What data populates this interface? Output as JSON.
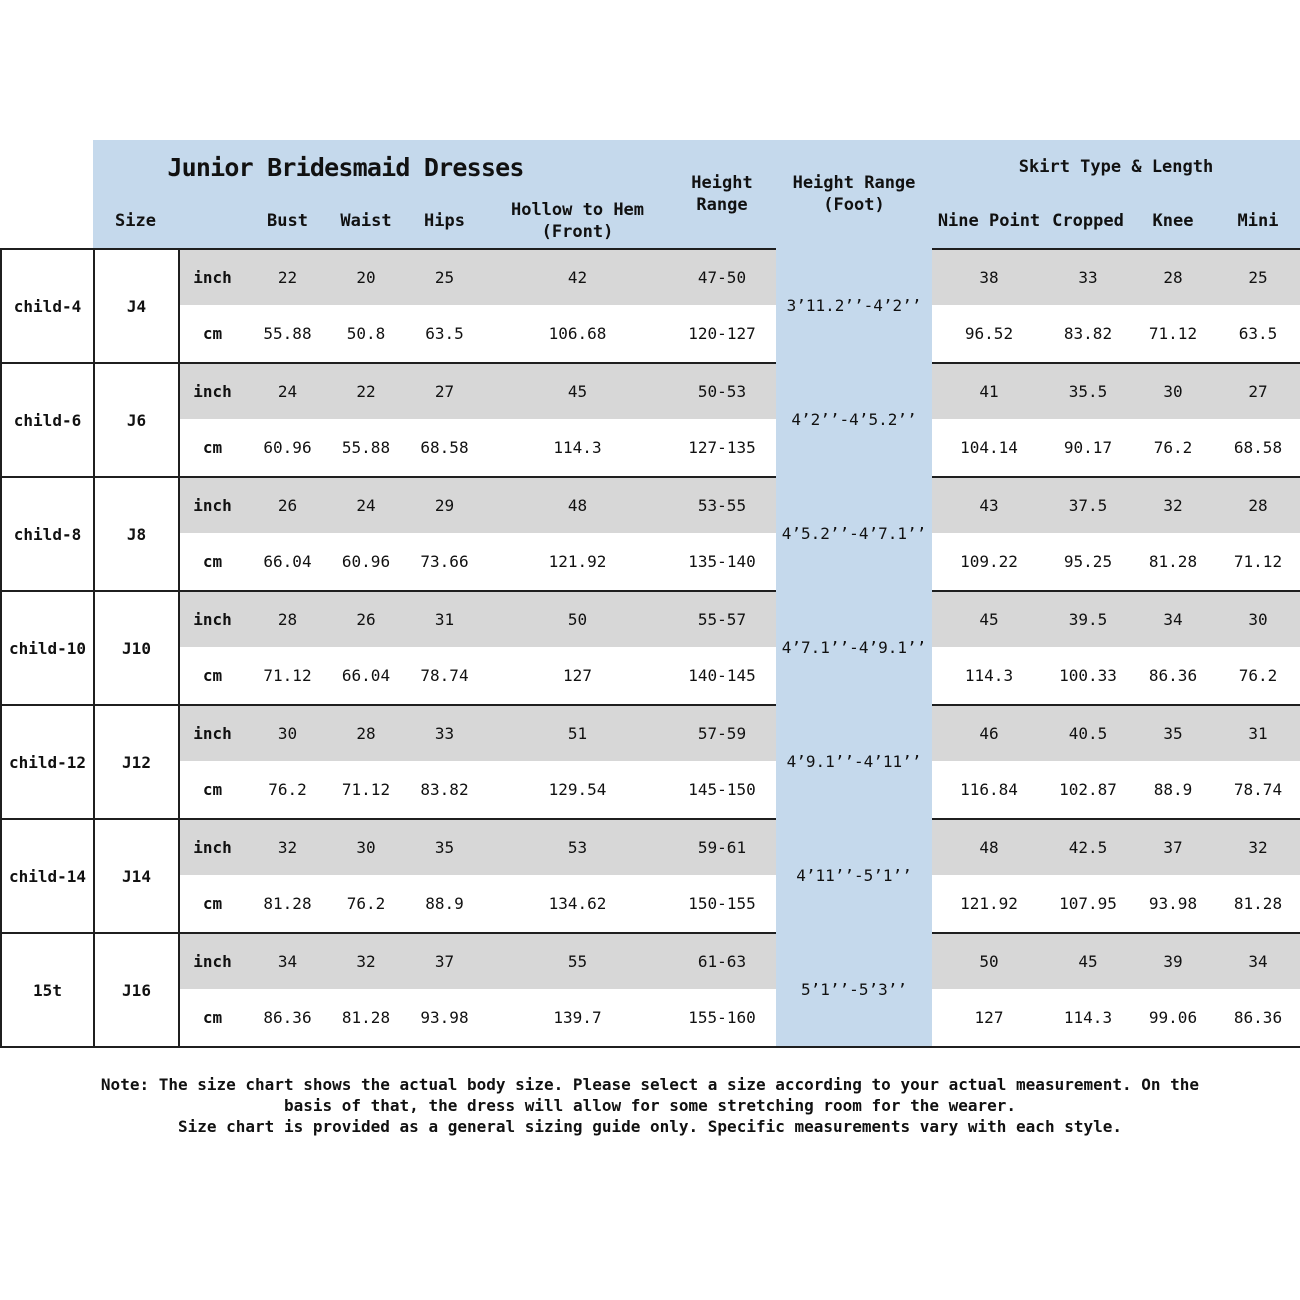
{
  "chart_data": {
    "type": "table",
    "title": "Junior Bridesmaid Dresses",
    "headers": {
      "size": "Size",
      "bust": "Bust",
      "waist": "Waist",
      "hips": "Hips",
      "hollow1": "Hollow to Hem",
      "hollow2": "(Front)",
      "height1": "Height",
      "height2": "Range",
      "foot1": "Height Range",
      "foot2": "(Foot)",
      "skirt": "Skirt Type & Length",
      "nine": "Nine Point",
      "cropped": "Cropped",
      "knee": "Knee",
      "mini": "Mini",
      "inch": "inch",
      "cm": "cm"
    },
    "rows": [
      {
        "label": "child-4",
        "size": "J4",
        "foot": "3’11.2’’-4’2’’",
        "inch": {
          "bust": "22",
          "waist": "20",
          "hips": "25",
          "hollow": "42",
          "height": "47-50",
          "nine": "38",
          "cropped": "33",
          "knee": "28",
          "mini": "25"
        },
        "cm": {
          "bust": "55.88",
          "waist": "50.8",
          "hips": "63.5",
          "hollow": "106.68",
          "height": "120-127",
          "nine": "96.52",
          "cropped": "83.82",
          "knee": "71.12",
          "mini": "63.5"
        }
      },
      {
        "label": "child-6",
        "size": "J6",
        "foot": "4’2’’-4’5.2’’",
        "inch": {
          "bust": "24",
          "waist": "22",
          "hips": "27",
          "hollow": "45",
          "height": "50-53",
          "nine": "41",
          "cropped": "35.5",
          "knee": "30",
          "mini": "27"
        },
        "cm": {
          "bust": "60.96",
          "waist": "55.88",
          "hips": "68.58",
          "hollow": "114.3",
          "height": "127-135",
          "nine": "104.14",
          "cropped": "90.17",
          "knee": "76.2",
          "mini": "68.58"
        }
      },
      {
        "label": "child-8",
        "size": "J8",
        "foot": "4’5.2’’-4’7.1’’",
        "inch": {
          "bust": "26",
          "waist": "24",
          "hips": "29",
          "hollow": "48",
          "height": "53-55",
          "nine": "43",
          "cropped": "37.5",
          "knee": "32",
          "mini": "28"
        },
        "cm": {
          "bust": "66.04",
          "waist": "60.96",
          "hips": "73.66",
          "hollow": "121.92",
          "height": "135-140",
          "nine": "109.22",
          "cropped": "95.25",
          "knee": "81.28",
          "mini": "71.12"
        }
      },
      {
        "label": "child-10",
        "size": "J10",
        "foot": "4’7.1’’-4’9.1’’",
        "inch": {
          "bust": "28",
          "waist": "26",
          "hips": "31",
          "hollow": "50",
          "height": "55-57",
          "nine": "45",
          "cropped": "39.5",
          "knee": "34",
          "mini": "30"
        },
        "cm": {
          "bust": "71.12",
          "waist": "66.04",
          "hips": "78.74",
          "hollow": "127",
          "height": "140-145",
          "nine": "114.3",
          "cropped": "100.33",
          "knee": "86.36",
          "mini": "76.2"
        }
      },
      {
        "label": "child-12",
        "size": "J12",
        "foot": "4’9.1’’-4’11’’",
        "inch": {
          "bust": "30",
          "waist": "28",
          "hips": "33",
          "hollow": "51",
          "height": "57-59",
          "nine": "46",
          "cropped": "40.5",
          "knee": "35",
          "mini": "31"
        },
        "cm": {
          "bust": "76.2",
          "waist": "71.12",
          "hips": "83.82",
          "hollow": "129.54",
          "height": "145-150",
          "nine": "116.84",
          "cropped": "102.87",
          "knee": "88.9",
          "mini": "78.74"
        }
      },
      {
        "label": "child-14",
        "size": "J14",
        "foot": "4’11’’-5’1’’",
        "inch": {
          "bust": "32",
          "waist": "30",
          "hips": "35",
          "hollow": "53",
          "height": "59-61",
          "nine": "48",
          "cropped": "42.5",
          "knee": "37",
          "mini": "32"
        },
        "cm": {
          "bust": "81.28",
          "waist": "76.2",
          "hips": "88.9",
          "hollow": "134.62",
          "height": "150-155",
          "nine": "121.92",
          "cropped": "107.95",
          "knee": "93.98",
          "mini": "81.28"
        }
      },
      {
        "label": "15t",
        "size": "J16",
        "foot": "5’1’’-5’3’’",
        "inch": {
          "bust": "34",
          "waist": "32",
          "hips": "37",
          "hollow": "55",
          "height": "61-63",
          "nine": "50",
          "cropped": "45",
          "knee": "39",
          "mini": "34"
        },
        "cm": {
          "bust": "86.36",
          "waist": "81.28",
          "hips": "93.98",
          "hollow": "139.7",
          "height": "155-160",
          "nine": "127",
          "cropped": "114.3",
          "knee": "99.06",
          "mini": "86.36"
        }
      }
    ],
    "note": {
      "line1": "Note: The size chart shows the actual body size. Please select a size according to your actual measurement. On the basis of that, the dress will allow for some stretching room for the wearer.",
      "line2": "Size chart is provided as a general sizing guide only. Specific measurements vary with each style."
    }
  },
  "colors": {
    "header_blue": "#c5d9ec",
    "stripe_gray": "#d7d7d7",
    "border": "#1f1f1f",
    "background": "#ffffff",
    "text": "#111111"
  }
}
